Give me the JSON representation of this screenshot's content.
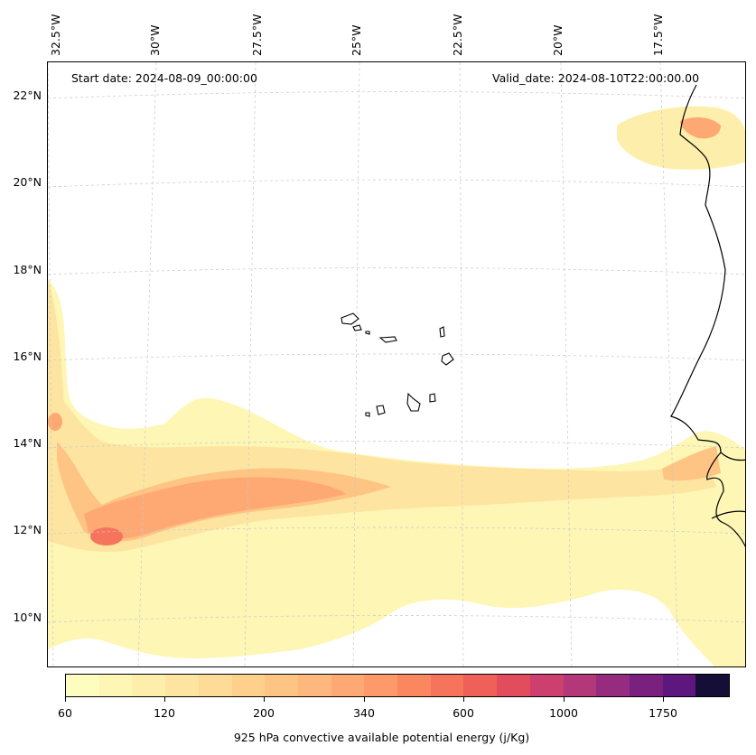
{
  "annotations": {
    "start_date": "Start date: 2024-08-09_00:00:00",
    "valid_date": "Valid_date: 2024-08-10T22:00:00.00"
  },
  "longitude_labels": [
    "32.5°W",
    "30°W",
    "27.5°W",
    "25°W",
    "22.5°W",
    "20°W",
    "17.5°W"
  ],
  "latitude_labels": [
    "22°N",
    "20°N",
    "18°N",
    "16°N",
    "14°N",
    "12°N",
    "10°N"
  ],
  "colorbar": {
    "title": "925 hPa convective available potential energy (j/Kg)",
    "tick_labels": [
      "60",
      "120",
      "200",
      "340",
      "600",
      "1000",
      "1750"
    ],
    "colors": [
      "#fcfdbf",
      "#fdf6b5",
      "#fdefab",
      "#fde5a1",
      "#fedb97",
      "#fed08c",
      "#fec484",
      "#feb77c",
      "#fea973",
      "#fe9a6a",
      "#fb8761",
      "#f6745c",
      "#ee6058",
      "#e24d5e",
      "#cc3f6f",
      "#b3387a",
      "#952c80",
      "#7a2180",
      "#5e177f",
      "#150e37"
    ]
  },
  "data_field": {
    "variable": "925 hPa convective available potential energy",
    "units": "j/Kg",
    "region": "Eastern tropical Atlantic, Cape Verde islands",
    "max_region": "12°N 31.5°W"
  },
  "style": {
    "coastline_color": "#000000",
    "gridline_color": "#bbbbbb"
  }
}
